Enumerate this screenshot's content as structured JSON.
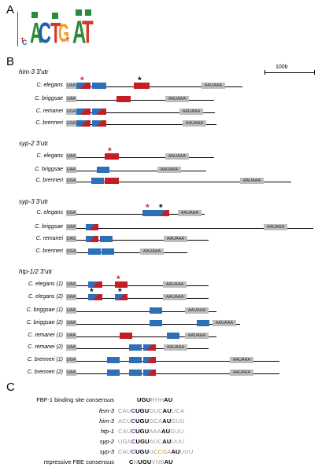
{
  "panels": {
    "a": "A",
    "b": "B",
    "c": "C"
  },
  "logo": {
    "letters": [
      {
        "ch": "T",
        "color": "#d33a2c"
      },
      {
        "ch": "C",
        "color": "#1f5fb3"
      },
      {
        "ch": "A",
        "color": "#2a8a3a"
      },
      {
        "ch": "C",
        "color": "#1f5fb3"
      },
      {
        "ch": "T",
        "color": "#d33a2c"
      },
      {
        "ch": "G",
        "color": "#f0a020"
      },
      {
        "ch": "T",
        "color": "#d33a2c"
      },
      {
        "ch": "A",
        "color": "#2a8a3a"
      },
      {
        "ch": "T",
        "color": "#d33a2c"
      }
    ]
  },
  "scale": {
    "label": "100b"
  },
  "genes": [
    {
      "title": "him-3",
      "suffix": " 3'utr",
      "tracks": [
        {
          "species": "C. elegans",
          "stop": "UAA",
          "polyA": "AAUAAA"
        },
        {
          "species": "C. briggsae",
          "stop": "UAA",
          "polyA": "AAUAAA"
        },
        {
          "species": "C. remanei",
          "stop": "UGA",
          "polyA": "AAUAAA"
        },
        {
          "species": "C. brenneri",
          "stop": "UGA",
          "polyA": "AAUAAA"
        }
      ]
    },
    {
      "title": "syp-2",
      "suffix": " 3'utr",
      "tracks": [
        {
          "species": "C. elegans",
          "stop": "UAA",
          "polyA": "AAUAAA"
        },
        {
          "species": "C. briggsae",
          "stop": "UAA",
          "polyA": "AAUAAA"
        },
        {
          "species": "C. brenneri",
          "stop": "UGA",
          "polyA": "AAUAAA"
        }
      ]
    },
    {
      "title": "syp-3",
      "suffix": " 3'utr",
      "tracks": [
        {
          "species": "C. elegans",
          "stop": "UGA",
          "polyA": "AAUAAA"
        },
        {
          "species": "C. briggsae",
          "stop": "UAA",
          "polyA": "AAUAAA"
        },
        {
          "species": "C. remanei",
          "stop": "UAG",
          "polyA": "AAUAAA"
        },
        {
          "species": "C. brenneri",
          "stop": "UGA",
          "polyA": "AAUAAA"
        }
      ]
    },
    {
      "title": "htp-1/2",
      "suffix": " 3'utr",
      "tracks": [
        {
          "species": "C. elegans (1)",
          "stop": "UAA",
          "polyA": "AAUAAA"
        },
        {
          "species": "C. elegans (2)",
          "stop": "UAA",
          "polyA": "AAUAAA"
        },
        {
          "species": "C. briggsae (1)",
          "stop": "UAA",
          "polyA": "AAUAAA"
        },
        {
          "species": "C. briggsae (2)",
          "stop": "UAA",
          "polyA": "AAUAAA"
        },
        {
          "species": "C. remanei (1)",
          "stop": "UAA",
          "polyA": "AAUAAA"
        },
        {
          "species": "C. remanei (2)",
          "stop": "UAA",
          "polyA": "AAUAAA"
        },
        {
          "species": "C. brenneri (1)",
          "stop": "UGA",
          "polyA": "AAUAAA"
        },
        {
          "species": "C. brenneri (2)",
          "stop": "UAA",
          "polyA": "AAUAAA"
        }
      ]
    }
  ],
  "panel_c": {
    "rows": [
      {
        "label": "FBF-1 binding site consensus",
        "italic": false,
        "segs": [
          [
            "b",
            "UGU"
          ],
          [
            "g",
            "RHH"
          ],
          [
            "b",
            "AU"
          ]
        ]
      },
      {
        "label": "fem-3",
        "italic": true,
        "segs": [
          [
            "g",
            "CAU"
          ],
          [
            "p",
            "C"
          ],
          [
            "b",
            "UGU"
          ],
          [
            "g",
            "GUC"
          ],
          [
            "b",
            "AU"
          ],
          [
            "g",
            "UCA"
          ]
        ]
      },
      {
        "label": "him-3",
        "italic": true,
        "segs": [
          [
            "g",
            "ACU"
          ],
          [
            "p",
            "C"
          ],
          [
            "b",
            "UGU"
          ],
          [
            "g",
            "GCA"
          ],
          [
            "b",
            "AU"
          ],
          [
            "g",
            "GUU"
          ]
        ]
      },
      {
        "label": "htp-1",
        "italic": true,
        "segs": [
          [
            "g",
            "CAU"
          ],
          [
            "p",
            "C"
          ],
          [
            "b",
            "UGU"
          ],
          [
            "g",
            "AAA"
          ],
          [
            "b",
            "AU"
          ],
          [
            "g",
            "GUU"
          ]
        ]
      },
      {
        "label": "syp-2",
        "italic": true,
        "segs": [
          [
            "g",
            "UGA"
          ],
          [
            "p",
            "C"
          ],
          [
            "b",
            "UGU"
          ],
          [
            "g",
            "AUC"
          ],
          [
            "b",
            "AU"
          ],
          [
            "g",
            "UUU"
          ]
        ]
      },
      {
        "label": "syp-3",
        "italic": true,
        "segs": [
          [
            "g",
            "CAU"
          ],
          [
            "p",
            "C"
          ],
          [
            "b",
            "UGU"
          ],
          [
            "g",
            "UC"
          ],
          [
            "o",
            "CG"
          ],
          [
            "g",
            "A"
          ],
          [
            "b",
            "AU"
          ],
          [
            "g",
            "UUU"
          ]
        ]
      },
      {
        "label": "repressive FBE consensus",
        "italic": false,
        "segs": [
          [
            "b",
            "C"
          ],
          [
            "g",
            "N"
          ],
          [
            "b",
            "UGU"
          ],
          [
            "g",
            "VNB"
          ],
          [
            "b",
            "AU"
          ]
        ]
      }
    ]
  }
}
